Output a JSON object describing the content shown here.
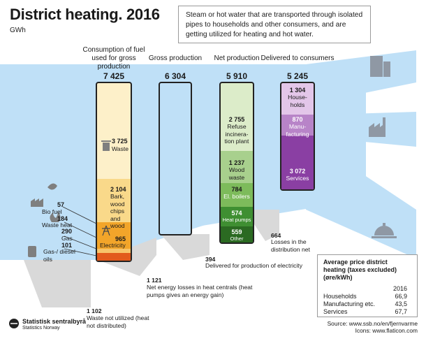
{
  "title": "District heating. 2016",
  "unit": "GWh",
  "info_text": "Steam or hot water that are transported through isolated pipes to households and other consumers, and are getting utilized for heating and hot water.",
  "columns": [
    {
      "label": "Consumption of fuel used for gross production",
      "value": "7 425"
    },
    {
      "label": "Gross production",
      "value": "6 304"
    },
    {
      "label": "Net production",
      "value": "5 910"
    },
    {
      "label": "Delivered to consumers",
      "value": "5 245"
    }
  ],
  "fuel": {
    "waste": {
      "value": "3 725",
      "label": "Waste"
    },
    "bark": {
      "value": "2 104",
      "label": "Bark, wood chips and wood"
    },
    "electricity": {
      "value": "965",
      "label": "Electricity"
    },
    "bio_fuel": {
      "value": "57",
      "label": "Bio fuel"
    },
    "waste_heat": {
      "value": "184",
      "label": "Waste heat"
    },
    "gas": {
      "value": "290",
      "label": "Gas"
    },
    "oils": {
      "value": "101",
      "label": "Gas-/ diesel oils"
    }
  },
  "net": {
    "refuse": {
      "value": "2 755",
      "label": "Refuse incinera-tion plant"
    },
    "wood": {
      "value": "1 237",
      "label": "Wood waste"
    },
    "boilers": {
      "value": "784",
      "label": "El. boilers"
    },
    "heatpumps": {
      "value": "574",
      "label": "Heat pumps"
    },
    "other": {
      "value": "559",
      "label": "Other"
    }
  },
  "delivered": {
    "households": {
      "value": "1 304",
      "label": "House-holds"
    },
    "manufacturing": {
      "value": "870",
      "label": "Manu-facturing"
    },
    "services": {
      "value": "3 072",
      "label": "Services"
    }
  },
  "losses": {
    "not_utilized": {
      "value": "1 102",
      "label": "Waste not utilized (heat not distributed)"
    },
    "net_energy": {
      "value": "1 121",
      "label": "Net energy losses in heat centrals (heat pumps gives an energy gain)"
    },
    "electricity_prod": {
      "value": "394",
      "label": "Delivered for production of electricity"
    },
    "distribution": {
      "value": "664",
      "label": "Losses in the distribution net"
    }
  },
  "prices": {
    "heading": "Average price district heating (taxes excluded) (øre/kWh)",
    "year": "2016",
    "rows": [
      {
        "name": "Households",
        "value": "66,9"
      },
      {
        "name": "Manufacturing etc.",
        "value": "43,5"
      },
      {
        "name": "Services",
        "value": "67,7"
      }
    ]
  },
  "source": "Source: www.ssb.no/en/fjernvarme",
  "icons_credit": "Icons: www.flaticon.com",
  "logo": {
    "name": "Statistisk sentralbyrå",
    "sub": "Statistics Norway"
  },
  "colors": {
    "flow": "#bfe0f7",
    "loss": "#d9d9d9",
    "fuel_light": "#fdf0c9",
    "fuel_mid": "#f9d98a",
    "fuel_orange": "#f2a52a",
    "fuel_red": "#e25a1c",
    "net_light": "#dcecc9",
    "net_mid": "#a8d08d",
    "net_dark": "#5fa241",
    "net_darker": "#2e7d2b",
    "del_light": "#e3c6e9",
    "del_mid": "#b884c8",
    "del_dark": "#8a3fa3"
  }
}
